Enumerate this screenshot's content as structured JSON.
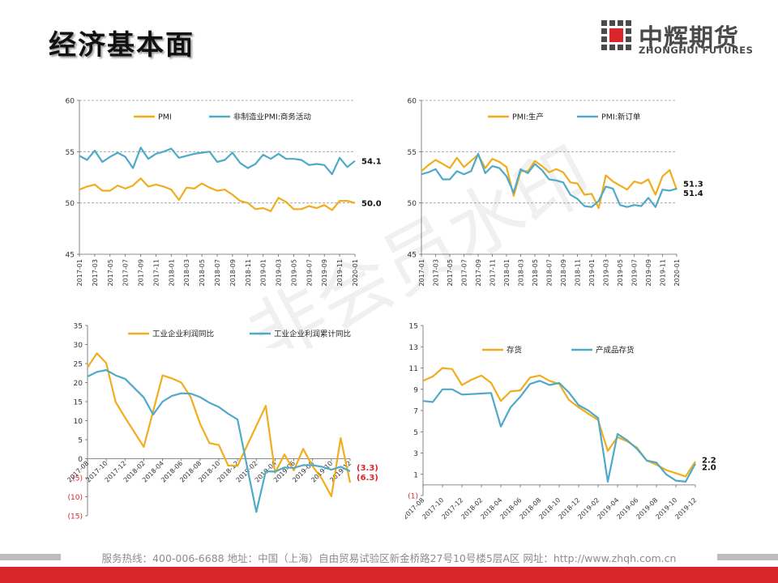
{
  "page": {
    "title": "经济基本面",
    "logo_cn": "中辉期货",
    "logo_en": "ZHONGHUI FUTURES",
    "watermark": "非会员水印",
    "footer": "服务热线：400-006-6688   地址：中国（上海）自由贸易试验区新金桥路27号10号楼5层A区   网址：http://www.zhqh.com.cn",
    "colors": {
      "orange": "#F0AD1E",
      "blue": "#4FA9C9",
      "red": "#d9252b",
      "grid": "#9a9a9a"
    }
  },
  "chart_data": [
    {
      "id": "pmi",
      "type": "line",
      "ylim": [
        45,
        60
      ],
      "yticks": [
        45,
        50,
        55,
        60
      ],
      "x": [
        "2017-01",
        "2017-02",
        "2017-03",
        "2017-04",
        "2017-05",
        "2017-06",
        "2017-07",
        "2017-08",
        "2017-09",
        "2017-10",
        "2017-11",
        "2017-12",
        "2018-01",
        "2018-02",
        "2018-03",
        "2018-04",
        "2018-05",
        "2018-06",
        "2018-07",
        "2018-08",
        "2018-09",
        "2018-10",
        "2018-11",
        "2018-12",
        "2019-01",
        "2019-02",
        "2019-03",
        "2019-04",
        "2019-05",
        "2019-06",
        "2019-07",
        "2019-08",
        "2019-09",
        "2019-10",
        "2019-11",
        "2019-12",
        "2020-01"
      ],
      "xtick_every": 2,
      "legend": [
        "PMI",
        "非制造业PMI:商务活动"
      ],
      "series": [
        {
          "name": "PMI",
          "color": "#F0AD1E",
          "values": [
            51.3,
            51.6,
            51.8,
            51.2,
            51.2,
            51.7,
            51.4,
            51.7,
            52.4,
            51.6,
            51.8,
            51.6,
            51.3,
            50.3,
            51.5,
            51.4,
            51.9,
            51.5,
            51.2,
            51.3,
            50.8,
            50.2,
            50.0,
            49.4,
            49.5,
            49.2,
            50.5,
            50.1,
            49.4,
            49.4,
            49.7,
            49.5,
            49.8,
            49.3,
            50.2,
            50.2,
            50.0
          ]
        },
        {
          "name": "非制造业PMI:商务活动",
          "color": "#4FA9C9",
          "values": [
            54.6,
            54.2,
            55.1,
            54.0,
            54.5,
            54.9,
            54.5,
            53.4,
            55.4,
            54.3,
            54.8,
            55.0,
            55.3,
            54.4,
            54.6,
            54.8,
            54.9,
            55.0,
            54.0,
            54.2,
            54.9,
            53.9,
            53.4,
            53.8,
            54.7,
            54.3,
            54.8,
            54.3,
            54.3,
            54.2,
            53.7,
            53.8,
            53.7,
            52.8,
            54.4,
            53.5,
            54.1
          ]
        }
      ],
      "end_labels": [
        "54.1",
        "50.0"
      ]
    },
    {
      "id": "pmi-sub",
      "type": "line",
      "ylim": [
        45,
        60
      ],
      "yticks": [
        45,
        50,
        55,
        60
      ],
      "x": [
        "2017-01",
        "2017-02",
        "2017-03",
        "2017-04",
        "2017-05",
        "2017-06",
        "2017-07",
        "2017-08",
        "2017-09",
        "2017-10",
        "2017-11",
        "2017-12",
        "2018-01",
        "2018-02",
        "2018-03",
        "2018-04",
        "2018-05",
        "2018-06",
        "2018-07",
        "2018-08",
        "2018-09",
        "2018-10",
        "2018-11",
        "2018-12",
        "2019-01",
        "2019-02",
        "2019-03",
        "2019-04",
        "2019-05",
        "2019-06",
        "2019-07",
        "2019-08",
        "2019-09",
        "2019-10",
        "2019-11",
        "2019-12",
        "2020-01"
      ],
      "xtick_every": 2,
      "legend": [
        "PMI:生产",
        "PMI:新订单"
      ],
      "series": [
        {
          "name": "PMI:生产",
          "color": "#F0AD1E",
          "values": [
            53.1,
            53.7,
            54.2,
            53.8,
            53.4,
            54.4,
            53.5,
            54.1,
            54.7,
            53.4,
            54.3,
            54.0,
            53.5,
            50.7,
            53.1,
            53.1,
            54.1,
            53.6,
            53.0,
            53.3,
            53.0,
            52.0,
            51.9,
            50.8,
            50.9,
            49.5,
            52.7,
            52.1,
            51.7,
            51.3,
            52.1,
            51.9,
            52.3,
            50.8,
            52.6,
            53.2,
            51.3
          ]
        },
        {
          "name": "PMI:新订单",
          "color": "#4FA9C9",
          "values": [
            52.8,
            53.0,
            53.3,
            52.3,
            52.3,
            53.1,
            52.8,
            53.1,
            54.8,
            52.9,
            53.6,
            53.4,
            52.6,
            51.0,
            53.3,
            52.9,
            53.8,
            53.2,
            52.3,
            52.2,
            52.0,
            50.8,
            50.4,
            49.7,
            49.6,
            50.2,
            51.6,
            51.4,
            49.8,
            49.6,
            49.8,
            49.7,
            50.5,
            49.6,
            51.3,
            51.2,
            51.4
          ]
        }
      ],
      "end_labels": [
        "51.3",
        "51.4"
      ]
    },
    {
      "id": "profit",
      "type": "line",
      "ylim": [
        -15,
        35
      ],
      "yticks": [
        -15,
        -10,
        -5,
        0,
        5,
        10,
        15,
        20,
        25,
        30,
        35
      ],
      "ytick_labels": [
        "(15)",
        "(10)",
        "(5)",
        "0",
        "5",
        "10",
        "15",
        "20",
        "25",
        "30",
        "35"
      ],
      "x": [
        "2017-08",
        "2017-09",
        "2017-10",
        "2017-11",
        "2017-12",
        "2018-01",
        "2018-02",
        "2018-03",
        "2018-04",
        "2018-05",
        "2018-06",
        "2018-07",
        "2018-08",
        "2018-09",
        "2018-10",
        "2018-11",
        "2018-12",
        "2019-01",
        "2019-02",
        "2019-03",
        "2019-04",
        "2019-05",
        "2019-06",
        "2019-07",
        "2019-08",
        "2019-09",
        "2019-10",
        "2019-11",
        "2019-12"
      ],
      "xtick_every": 2,
      "legend": [
        "工业企业利润同比",
        "工业企业利润累计同比"
      ],
      "series": [
        {
          "name": "工业企业利润同比",
          "color": "#F0AD1E",
          "values": [
            24.0,
            27.7,
            25.1,
            14.9,
            10.8,
            null,
            3.1,
            null,
            21.9,
            21.1,
            20.0,
            16.2,
            9.2,
            4.1,
            3.6,
            -1.8,
            -1.9,
            null,
            null,
            13.9,
            -3.7,
            1.1,
            -3.1,
            2.6,
            -2.0,
            -5.3,
            -9.9,
            5.4,
            -6.3
          ]
        },
        {
          "name": "工业企业利润累计同比",
          "color": "#4FA9C9",
          "values": [
            21.6,
            22.8,
            23.3,
            21.9,
            21.0,
            null,
            16.1,
            11.6,
            15.0,
            16.5,
            17.2,
            17.1,
            16.2,
            14.7,
            13.6,
            11.8,
            10.3,
            null,
            -14.0,
            -3.3,
            -3.4,
            -2.3,
            -2.4,
            -1.7,
            -1.7,
            -2.1,
            -2.9,
            -2.1,
            -3.3
          ]
        }
      ],
      "end_labels": [
        "(3.3)",
        "(6.3)"
      ]
    },
    {
      "id": "inventory",
      "type": "line",
      "ylim": [
        -1,
        15
      ],
      "yticks": [
        -1,
        1,
        3,
        5,
        7,
        9,
        11,
        13,
        15
      ],
      "ytick_labels": [
        "(1)",
        "1",
        "3",
        "5",
        "7",
        "9",
        "11",
        "13",
        "15"
      ],
      "x": [
        "2017-08",
        "2017-09",
        "2017-10",
        "2017-11",
        "2017-12",
        "2018-01",
        "2018-02",
        "2018-03",
        "2018-04",
        "2018-05",
        "2018-06",
        "2018-07",
        "2018-08",
        "2018-09",
        "2018-10",
        "2018-11",
        "2018-12",
        "2019-01",
        "2019-02",
        "2019-03",
        "2019-04",
        "2019-05",
        "2019-06",
        "2019-07",
        "2019-08",
        "2019-09",
        "2019-10",
        "2019-11",
        "2019-12"
      ],
      "xtick_every": 2,
      "legend": [
        "存货",
        "产成品存货"
      ],
      "series": [
        {
          "name": "存货",
          "color": "#F0AD1E",
          "values": [
            9.8,
            10.2,
            11.0,
            10.9,
            9.4,
            9.9,
            10.3,
            9.6,
            7.9,
            8.8,
            8.9,
            10.1,
            10.3,
            9.8,
            9.5,
            8.0,
            7.3,
            6.7,
            6.1,
            3.2,
            4.5,
            4.1,
            3.5,
            2.3,
            1.9,
            1.4,
            1.1,
            0.8,
            2.2
          ]
        },
        {
          "name": "产成品存货",
          "color": "#4FA9C9",
          "values": [
            7.9,
            7.8,
            9.0,
            9.0,
            8.5,
            8.55,
            8.6,
            8.65,
            5.5,
            7.3,
            8.3,
            9.5,
            9.8,
            9.4,
            9.6,
            8.7,
            7.5,
            7.0,
            6.3,
            0.3,
            4.8,
            4.2,
            3.4,
            2.3,
            2.1,
            1.0,
            0.4,
            0.3,
            2.0
          ]
        }
      ],
      "end_labels": [
        "2.2",
        "2.0"
      ]
    }
  ]
}
